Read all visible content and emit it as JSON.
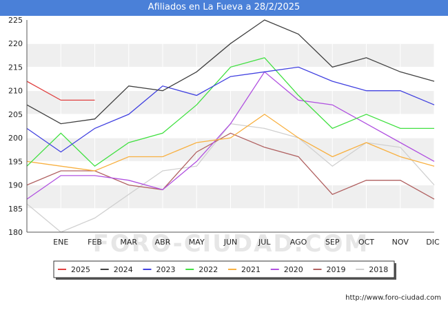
{
  "page": {
    "title": "Afiliados en La Fueva a 28/2/2025",
    "footer_url": "http://www.foro-ciudad.com",
    "watermark": "FORO-CIUDAD.COM"
  },
  "colors": {
    "title_bar": "#4a80d8",
    "plot_bg_band": "#efefef",
    "grid": "#ffffff",
    "axis": "#555555"
  },
  "chart_data": {
    "type": "line",
    "title": "Afiliados en La Fueva a 28/2/2025",
    "xlabel": "",
    "ylabel": "",
    "categories": [
      "",
      "ENE",
      "FEB",
      "MAR",
      "ABR",
      "MAY",
      "JUN",
      "JUL",
      "AGO",
      "SEP",
      "OCT",
      "NOV",
      "DIC"
    ],
    "ylim": [
      180,
      225
    ],
    "yticks": [
      180,
      185,
      190,
      195,
      200,
      205,
      210,
      215,
      220,
      225
    ],
    "legend_position": "bottom",
    "series": [
      {
        "name": "2025",
        "color": "#e04040",
        "values": [
          212,
          208,
          208,
          null,
          null,
          null,
          null,
          null,
          null,
          null,
          null,
          null,
          null
        ]
      },
      {
        "name": "2024",
        "color": "#404040",
        "values": [
          207,
          203,
          204,
          211,
          210,
          214,
          220,
          225,
          222,
          215,
          217,
          214,
          212
        ]
      },
      {
        "name": "2023",
        "color": "#4040e0",
        "values": [
          202,
          197,
          202,
          205,
          211,
          209,
          213,
          214,
          215,
          212,
          210,
          210,
          207
        ]
      },
      {
        "name": "2022",
        "color": "#40e040",
        "values": [
          194,
          201,
          194,
          199,
          201,
          207,
          215,
          217,
          209,
          202,
          205,
          202,
          202
        ]
      },
      {
        "name": "2021",
        "color": "#f8b040",
        "values": [
          195,
          194,
          193,
          196,
          196,
          199,
          200,
          205,
          200,
          196,
          199,
          196,
          194
        ]
      },
      {
        "name": "2020",
        "color": "#b050e0",
        "values": [
          187,
          192,
          192,
          191,
          189,
          195,
          203,
          214,
          208,
          207,
          203,
          199,
          195
        ]
      },
      {
        "name": "2019",
        "color": "#b06060",
        "values": [
          190,
          193,
          193,
          190,
          189,
          197,
          201,
          198,
          196,
          188,
          191,
          191,
          187
        ]
      },
      {
        "name": "2018",
        "color": "#d0d0d0",
        "values": [
          186,
          180,
          183,
          188,
          193,
          194,
          203,
          202,
          200,
          194,
          199,
          198,
          190
        ]
      }
    ]
  }
}
